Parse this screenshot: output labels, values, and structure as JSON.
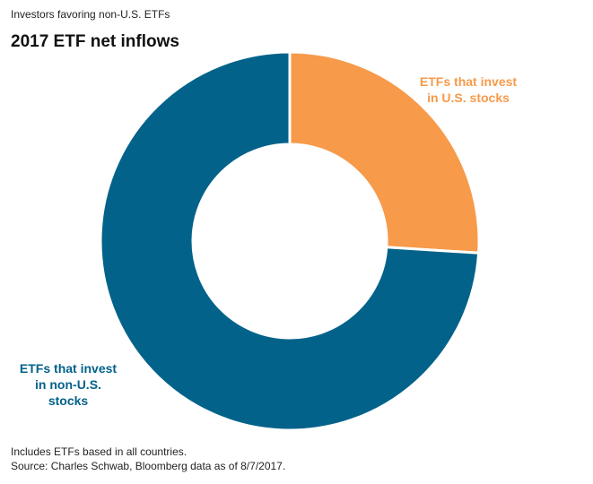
{
  "header": {
    "label": "Investors favoring non-U.S. ETFs"
  },
  "chart_data": {
    "type": "pie",
    "title": "2017 ETF net inflows",
    "donut": true,
    "start_angle_deg": 0,
    "direction": "clockwise",
    "slices": [
      {
        "label": "ETFs that invest\nin U.S. stocks",
        "value": 26,
        "color": "#f79a4a"
      },
      {
        "label": "ETFs that invest\nin non-U.S.\nstocks",
        "value": 74,
        "color": "#02628a"
      }
    ],
    "legend": "none"
  },
  "footnotes": {
    "line1": "Includes ETFs based in all countries.",
    "line2": "Source: Charles Schwab, Bloomberg data as of 8/7/2017."
  }
}
